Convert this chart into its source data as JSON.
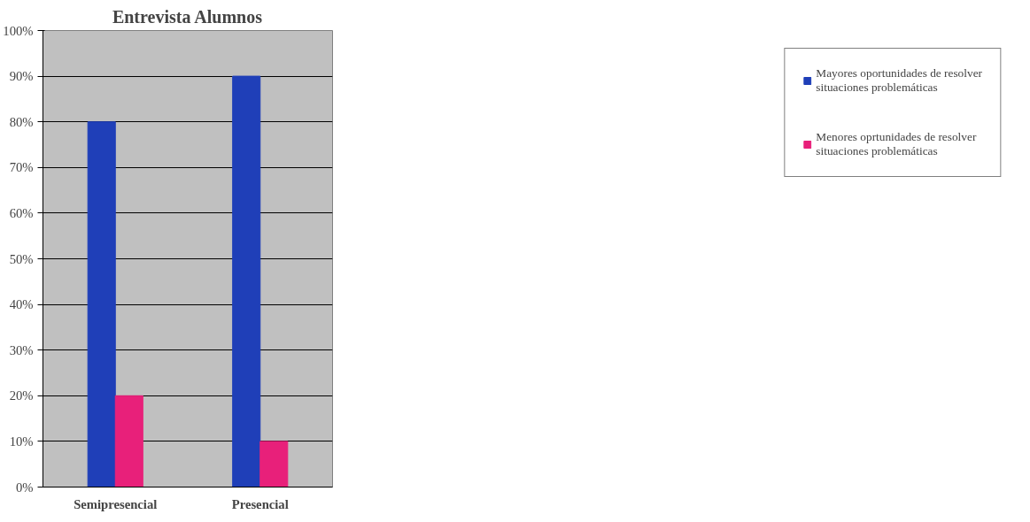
{
  "chart_data": {
    "type": "bar",
    "title": "Entrevista Alumnos",
    "categories": [
      "Semipresencial",
      "Presencial"
    ],
    "series": [
      {
        "name": "Mayores oportunidades de resolver situaciones problemáticas",
        "color": "#1f3fb8",
        "values": [
          80,
          90
        ]
      },
      {
        "name": "Menores oprtunidades de resolver situaciones problemáticas",
        "color": "#e8207a",
        "values": [
          20,
          10
        ]
      }
    ],
    "ylim": [
      0,
      100
    ],
    "yticks": [
      {
        "value": 0,
        "label": "0%"
      },
      {
        "value": 10,
        "label": "10%"
      },
      {
        "value": 20,
        "label": "20%"
      },
      {
        "value": 30,
        "label": "30%"
      },
      {
        "value": 40,
        "label": "40%"
      },
      {
        "value": 50,
        "label": "50%"
      },
      {
        "value": 60,
        "label": "60%"
      },
      {
        "value": 70,
        "label": "70%"
      },
      {
        "value": 80,
        "label": "80%"
      },
      {
        "value": 90,
        "label": "90%"
      },
      {
        "value": 100,
        "label": "100%"
      }
    ],
    "grid": "y",
    "legend": "right"
  }
}
